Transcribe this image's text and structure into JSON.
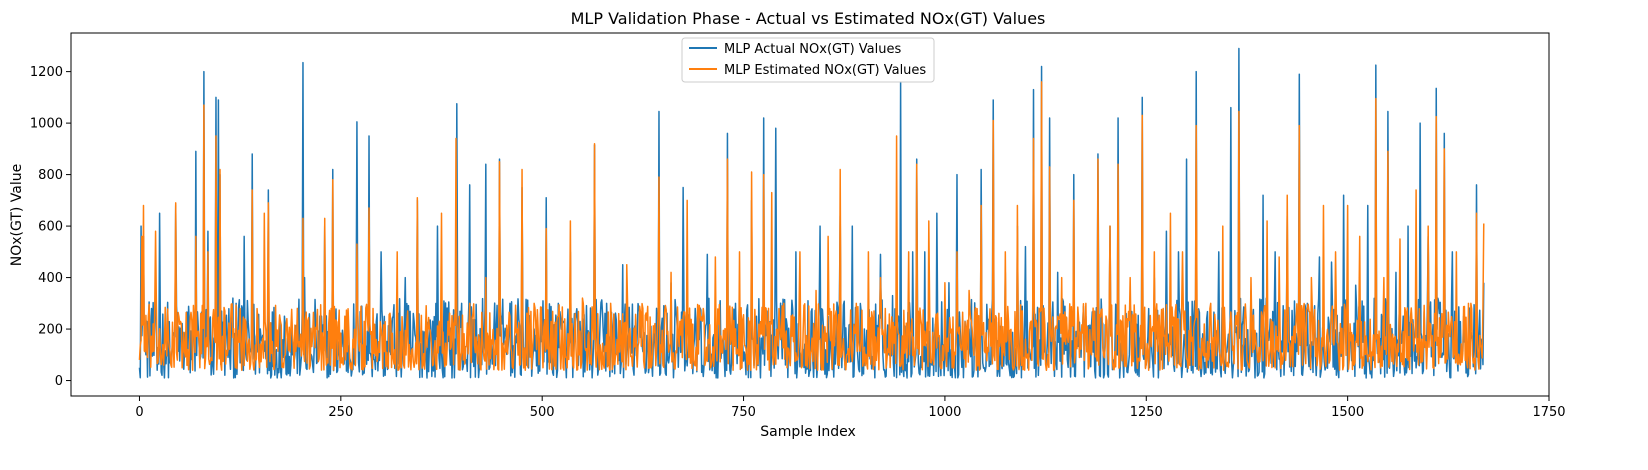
{
  "chart_data": {
    "type": "line",
    "title": "MLP Validation Phase - Actual vs Estimated NOx(GT) Values",
    "xlabel": "Sample Index",
    "ylabel": "NOx(GT) Value",
    "xlim": [
      -85,
      1750
    ],
    "ylim": [
      -60,
      1350
    ],
    "x_ticks": [
      0,
      250,
      500,
      750,
      1000,
      1250,
      1500,
      1750
    ],
    "y_ticks": [
      0,
      200,
      400,
      600,
      800,
      1000,
      1200
    ],
    "grid": false,
    "legend_position": "top-center",
    "n_samples": 1670,
    "series": [
      {
        "name": "MLP Actual NOx(GT) Values",
        "color": "#1f77b4",
        "peaks": [
          [
            0,
            50
          ],
          [
            2,
            600
          ],
          [
            5,
            560
          ],
          [
            8,
            100
          ],
          [
            15,
            280
          ],
          [
            22,
            40
          ],
          [
            25,
            650
          ],
          [
            40,
            100
          ],
          [
            45,
            680
          ],
          [
            60,
            90
          ],
          [
            70,
            890
          ],
          [
            75,
            80
          ],
          [
            80,
            1200
          ],
          [
            85,
            580
          ],
          [
            90,
            60
          ],
          [
            95,
            1100
          ],
          [
            98,
            1090
          ],
          [
            100,
            800
          ],
          [
            110,
            90
          ],
          [
            120,
            300
          ],
          [
            130,
            560
          ],
          [
            140,
            880
          ],
          [
            150,
            200
          ],
          [
            160,
            740
          ],
          [
            170,
            120
          ],
          [
            180,
            250
          ],
          [
            190,
            100
          ],
          [
            203,
            1235
          ],
          [
            205,
            400
          ],
          [
            215,
            60
          ],
          [
            230,
            600
          ],
          [
            240,
            820
          ],
          [
            255,
            150
          ],
          [
            270,
            1005
          ],
          [
            275,
            150
          ],
          [
            285,
            950
          ],
          [
            290,
            150
          ],
          [
            300,
            500
          ],
          [
            315,
            250
          ],
          [
            330,
            400
          ],
          [
            345,
            700
          ],
          [
            355,
            150
          ],
          [
            370,
            600
          ],
          [
            385,
            120
          ],
          [
            394,
            1075
          ],
          [
            400,
            300
          ],
          [
            410,
            760
          ],
          [
            420,
            150
          ],
          [
            430,
            840
          ],
          [
            440,
            200
          ],
          [
            447,
            860
          ],
          [
            460,
            300
          ],
          [
            475,
            750
          ],
          [
            490,
            200
          ],
          [
            505,
            710
          ],
          [
            520,
            300
          ],
          [
            535,
            500
          ],
          [
            550,
            240
          ],
          [
            565,
            915
          ],
          [
            580,
            300
          ],
          [
            600,
            450
          ],
          [
            620,
            280
          ],
          [
            645,
            1045
          ],
          [
            660,
            380
          ],
          [
            675,
            750
          ],
          [
            690,
            280
          ],
          [
            705,
            490
          ],
          [
            720,
            260
          ],
          [
            730,
            960
          ],
          [
            740,
            300
          ],
          [
            760,
            700
          ],
          [
            775,
            1020
          ],
          [
            790,
            980
          ],
          [
            800,
            250
          ],
          [
            815,
            500
          ],
          [
            830,
            310
          ],
          [
            845,
            600
          ],
          [
            855,
            250
          ],
          [
            870,
            640
          ],
          [
            885,
            600
          ],
          [
            900,
            200
          ],
          [
            920,
            490
          ],
          [
            935,
            330
          ],
          [
            945,
            1160
          ],
          [
            960,
            500
          ],
          [
            965,
            860
          ],
          [
            975,
            500
          ],
          [
            990,
            650
          ],
          [
            1005,
            380
          ],
          [
            1015,
            800
          ],
          [
            1030,
            200
          ],
          [
            1045,
            820
          ],
          [
            1060,
            1090
          ],
          [
            1075,
            420
          ],
          [
            1090,
            600
          ],
          [
            1100,
            520
          ],
          [
            1110,
            1130
          ],
          [
            1120,
            1220
          ],
          [
            1130,
            1020
          ],
          [
            1140,
            420
          ],
          [
            1160,
            800
          ],
          [
            1175,
            250
          ],
          [
            1190,
            880
          ],
          [
            1205,
            600
          ],
          [
            1215,
            1020
          ],
          [
            1230,
            300
          ],
          [
            1245,
            1100
          ],
          [
            1260,
            400
          ],
          [
            1275,
            580
          ],
          [
            1290,
            500
          ],
          [
            1300,
            860
          ],
          [
            1312,
            1200
          ],
          [
            1325,
            240
          ],
          [
            1340,
            500
          ],
          [
            1355,
            1060
          ],
          [
            1365,
            1290
          ],
          [
            1380,
            350
          ],
          [
            1395,
            720
          ],
          [
            1410,
            500
          ],
          [
            1425,
            640
          ],
          [
            1440,
            1190
          ],
          [
            1450,
            300
          ],
          [
            1465,
            480
          ],
          [
            1480,
            460
          ],
          [
            1495,
            720
          ],
          [
            1510,
            370
          ],
          [
            1525,
            680
          ],
          [
            1535,
            1225
          ],
          [
            1545,
            300
          ],
          [
            1550,
            1045
          ],
          [
            1560,
            420
          ],
          [
            1575,
            600
          ],
          [
            1590,
            1000
          ],
          [
            1600,
            560
          ],
          [
            1610,
            1135
          ],
          [
            1620,
            960
          ],
          [
            1630,
            500
          ],
          [
            1645,
            150
          ],
          [
            1660,
            760
          ],
          [
            1669,
            380
          ]
        ],
        "baseline_min": 10,
        "baseline_max": 320
      },
      {
        "name": "MLP Estimated NOx(GT) Values",
        "color": "#ff7f0e",
        "peaks": [
          [
            0,
            80
          ],
          [
            3,
            560
          ],
          [
            5,
            680
          ],
          [
            10,
            90
          ],
          [
            20,
            580
          ],
          [
            30,
            60
          ],
          [
            45,
            690
          ],
          [
            60,
            120
          ],
          [
            70,
            560
          ],
          [
            80,
            1070
          ],
          [
            85,
            500
          ],
          [
            95,
            950
          ],
          [
            100,
            820
          ],
          [
            110,
            120
          ],
          [
            125,
            280
          ],
          [
            140,
            740
          ],
          [
            155,
            650
          ],
          [
            160,
            690
          ],
          [
            175,
            230
          ],
          [
            190,
            180
          ],
          [
            203,
            630
          ],
          [
            220,
            200
          ],
          [
            230,
            630
          ],
          [
            240,
            780
          ],
          [
            255,
            250
          ],
          [
            270,
            530
          ],
          [
            285,
            670
          ],
          [
            300,
            200
          ],
          [
            320,
            500
          ],
          [
            345,
            710
          ],
          [
            360,
            200
          ],
          [
            375,
            650
          ],
          [
            393,
            940
          ],
          [
            410,
            300
          ],
          [
            430,
            400
          ],
          [
            447,
            850
          ],
          [
            460,
            250
          ],
          [
            475,
            820
          ],
          [
            490,
            300
          ],
          [
            505,
            590
          ],
          [
            520,
            250
          ],
          [
            535,
            620
          ],
          [
            550,
            320
          ],
          [
            565,
            920
          ],
          [
            585,
            300
          ],
          [
            605,
            450
          ],
          [
            625,
            280
          ],
          [
            645,
            790
          ],
          [
            660,
            420
          ],
          [
            680,
            700
          ],
          [
            700,
            280
          ],
          [
            715,
            480
          ],
          [
            730,
            860
          ],
          [
            745,
            500
          ],
          [
            760,
            810
          ],
          [
            775,
            800
          ],
          [
            785,
            730
          ],
          [
            800,
            300
          ],
          [
            820,
            500
          ],
          [
            840,
            350
          ],
          [
            855,
            560
          ],
          [
            870,
            820
          ],
          [
            890,
            300
          ],
          [
            905,
            500
          ],
          [
            920,
            400
          ],
          [
            940,
            950
          ],
          [
            955,
            500
          ],
          [
            965,
            840
          ],
          [
            980,
            620
          ],
          [
            1000,
            380
          ],
          [
            1015,
            500
          ],
          [
            1030,
            350
          ],
          [
            1045,
            680
          ],
          [
            1060,
            1010
          ],
          [
            1075,
            500
          ],
          [
            1090,
            680
          ],
          [
            1110,
            940
          ],
          [
            1120,
            1160
          ],
          [
            1130,
            830
          ],
          [
            1145,
            400
          ],
          [
            1160,
            700
          ],
          [
            1175,
            300
          ],
          [
            1190,
            860
          ],
          [
            1205,
            600
          ],
          [
            1215,
            840
          ],
          [
            1230,
            400
          ],
          [
            1245,
            1030
          ],
          [
            1260,
            500
          ],
          [
            1280,
            650
          ],
          [
            1295,
            500
          ],
          [
            1312,
            990
          ],
          [
            1330,
            300
          ],
          [
            1345,
            600
          ],
          [
            1365,
            1045
          ],
          [
            1380,
            400
          ],
          [
            1400,
            620
          ],
          [
            1415,
            480
          ],
          [
            1425,
            720
          ],
          [
            1440,
            990
          ],
          [
            1455,
            400
          ],
          [
            1470,
            680
          ],
          [
            1485,
            500
          ],
          [
            1500,
            680
          ],
          [
            1515,
            560
          ],
          [
            1535,
            1095
          ],
          [
            1545,
            400
          ],
          [
            1550,
            890
          ],
          [
            1565,
            550
          ],
          [
            1585,
            740
          ],
          [
            1600,
            600
          ],
          [
            1610,
            1025
          ],
          [
            1620,
            900
          ],
          [
            1635,
            500
          ],
          [
            1650,
            300
          ],
          [
            1660,
            650
          ],
          [
            1669,
            610
          ]
        ],
        "baseline_min": 40,
        "baseline_max": 300
      }
    ]
  }
}
